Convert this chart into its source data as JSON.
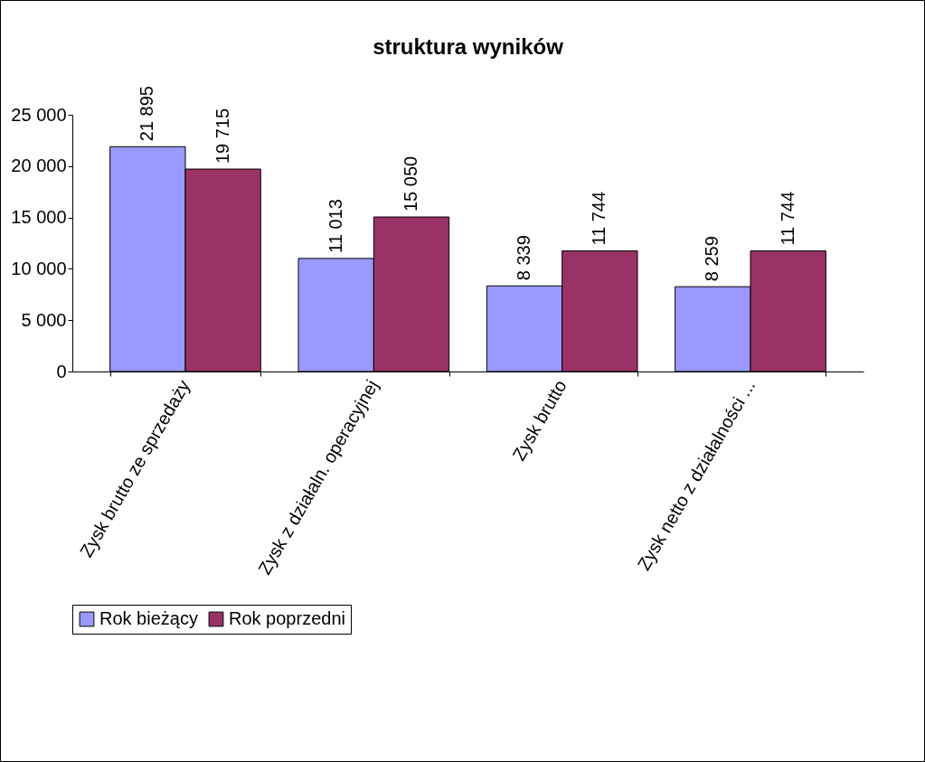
{
  "chart_data": {
    "type": "bar",
    "title": "struktura wyników",
    "categories": [
      "Zysk brutto ze sprzedaży",
      "Zysk z działaln. operacyjnej",
      "Zysk brutto",
      "Zysk netto z działalności ..."
    ],
    "series": [
      {
        "name": "Rok bieżący",
        "color": "#9999ff",
        "values": [
          21895,
          11013,
          8339,
          8259
        ],
        "value_labels": [
          "21 895",
          "11 013",
          "8 339",
          "8 259"
        ]
      },
      {
        "name": "Rok poprzedni",
        "color": "#993366",
        "values": [
          19715,
          15050,
          11744,
          11744
        ],
        "value_labels": [
          "19 715",
          "15 050",
          "11 744",
          "11 744"
        ]
      }
    ],
    "ylim": [
      0,
      25000
    ],
    "yticks": [
      0,
      {
        "value": 5000,
        "label": "5 000"
      },
      {
        "value": 10000,
        "label": "10 000"
      },
      {
        "value": 15000,
        "label": "15 000"
      },
      {
        "value": 20000,
        "label": "20 000"
      },
      {
        "value": 25000,
        "label": "25 000"
      }
    ],
    "grid": false,
    "legend": "bottom"
  }
}
